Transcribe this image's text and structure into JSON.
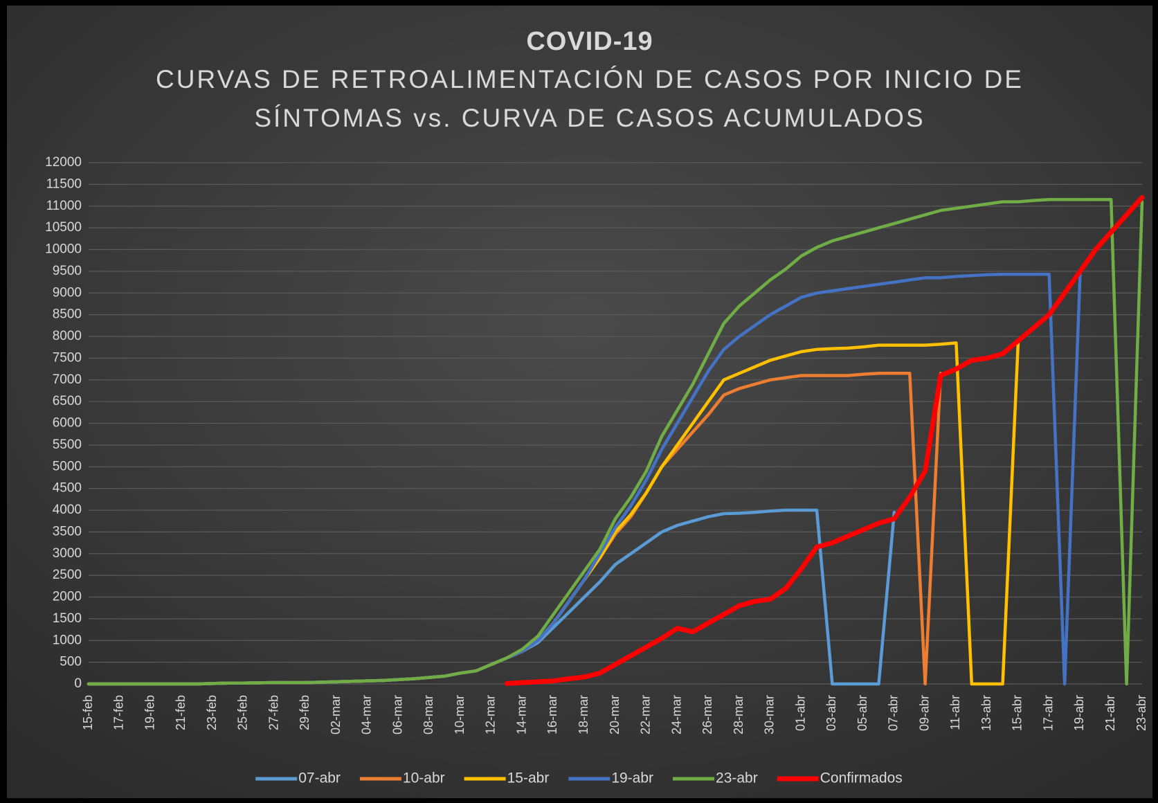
{
  "chart_data": {
    "type": "line",
    "title": "COVID-19",
    "subtitle": [
      "CURVAS DE RETROALIMENTACIÓN DE CASOS POR INICIO DE",
      "SÍNTOMAS vs. CURVA DE CASOS ACUMULADOS"
    ],
    "categories": [
      "15-feb",
      null,
      "17-feb",
      null,
      "19-feb",
      null,
      "21-feb",
      null,
      "23-feb",
      null,
      "25-feb",
      null,
      "27-feb",
      null,
      "29-feb",
      null,
      "02-mar",
      null,
      "04-mar",
      null,
      "06-mar",
      null,
      "08-mar",
      null,
      "10-mar",
      null,
      "12-mar",
      null,
      "14-mar",
      null,
      "16-mar",
      null,
      "18-mar",
      null,
      "20-mar",
      null,
      "22-mar",
      null,
      "24-mar",
      null,
      "26-mar",
      null,
      "28-mar",
      null,
      "30-mar",
      null,
      "01-abr",
      null,
      "03-abr",
      null,
      "05-abr",
      null,
      "07-abr",
      null,
      "09-abr",
      null,
      "11-abr",
      null,
      "13-abr",
      null,
      "15-abr",
      null,
      "17-abr",
      null,
      "19-abr",
      null,
      "21-abr",
      null,
      "23-abr"
    ],
    "series": [
      {
        "name": "07-abr",
        "color": "#5b9bd5",
        "values": [
          0,
          0,
          0,
          0,
          0,
          0,
          0,
          0,
          10,
          20,
          20,
          25,
          30,
          30,
          30,
          40,
          50,
          60,
          70,
          80,
          100,
          120,
          150,
          180,
          250,
          300,
          450,
          600,
          750,
          950,
          1300,
          1650,
          2000,
          2350,
          2750,
          3000,
          3250,
          3500,
          3650,
          3750,
          3850,
          3920,
          3930,
          3950,
          3980,
          4000,
          4000,
          4000,
          0,
          0,
          0,
          0,
          3950,
          null,
          null,
          null,
          null,
          null,
          null,
          null,
          null,
          null,
          null,
          null,
          null,
          null,
          null,
          null,
          null
        ]
      },
      {
        "name": "10-abr",
        "color": "#ed7d31",
        "values": [
          0,
          0,
          0,
          0,
          0,
          0,
          0,
          0,
          10,
          20,
          20,
          25,
          30,
          30,
          30,
          40,
          50,
          60,
          70,
          80,
          100,
          120,
          150,
          180,
          250,
          300,
          450,
          600,
          750,
          1000,
          1400,
          1900,
          2400,
          2900,
          3450,
          3850,
          4400,
          5000,
          5400,
          5800,
          6200,
          6650,
          6800,
          6900,
          7000,
          7050,
          7100,
          7100,
          7100,
          7100,
          7130,
          7150,
          7150,
          7150,
          0,
          7150,
          null,
          null,
          null,
          null,
          null,
          null,
          null,
          null,
          null,
          null,
          null,
          null,
          null
        ]
      },
      {
        "name": "15-abr",
        "color": "#ffc000",
        "values": [
          0,
          0,
          0,
          0,
          0,
          0,
          0,
          0,
          10,
          20,
          20,
          25,
          30,
          30,
          30,
          40,
          50,
          60,
          70,
          80,
          100,
          120,
          150,
          180,
          250,
          300,
          450,
          600,
          750,
          1000,
          1400,
          1900,
          2400,
          2900,
          3500,
          3900,
          4400,
          5000,
          5500,
          6000,
          6500,
          7000,
          7150,
          7300,
          7450,
          7550,
          7650,
          7700,
          7720,
          7730,
          7760,
          7800,
          7800,
          7800,
          7800,
          7820,
          7850,
          0,
          0,
          0,
          7850,
          null,
          null,
          null,
          null,
          null,
          null,
          null,
          null
        ]
      },
      {
        "name": "19-abr",
        "color": "#4472c4",
        "values": [
          0,
          0,
          0,
          0,
          0,
          0,
          0,
          0,
          10,
          20,
          20,
          25,
          30,
          30,
          30,
          40,
          50,
          60,
          70,
          80,
          100,
          120,
          150,
          180,
          250,
          300,
          450,
          600,
          750,
          1000,
          1400,
          1900,
          2400,
          3000,
          3600,
          4100,
          4700,
          5400,
          6000,
          6600,
          7200,
          7700,
          8000,
          8250,
          8500,
          8700,
          8900,
          9000,
          9050,
          9100,
          9150,
          9200,
          9250,
          9300,
          9350,
          9350,
          9380,
          9400,
          9420,
          9430,
          9430,
          9430,
          9430,
          0,
          9450,
          null,
          null,
          null,
          null
        ]
      },
      {
        "name": "23-abr",
        "color": "#70ad47",
        "values": [
          0,
          0,
          0,
          0,
          0,
          0,
          0,
          0,
          10,
          20,
          20,
          25,
          30,
          30,
          30,
          40,
          50,
          60,
          70,
          80,
          100,
          120,
          150,
          180,
          250,
          300,
          450,
          600,
          800,
          1100,
          1600,
          2100,
          2600,
          3100,
          3800,
          4300,
          4900,
          5700,
          6300,
          6900,
          7600,
          8300,
          8700,
          9000,
          9300,
          9550,
          9850,
          10050,
          10200,
          10300,
          10400,
          10500,
          10600,
          10700,
          10800,
          10900,
          10950,
          11000,
          11050,
          11100,
          11100,
          11130,
          11150,
          11150,
          11150,
          11150,
          11150,
          0,
          11100
        ]
      },
      {
        "name": "Confirmados",
        "color": "#ff0000",
        "values": [
          null,
          null,
          null,
          null,
          null,
          null,
          null,
          null,
          null,
          null,
          null,
          null,
          null,
          null,
          null,
          null,
          null,
          null,
          null,
          null,
          null,
          null,
          null,
          null,
          null,
          null,
          null,
          10,
          30,
          50,
          70,
          120,
          160,
          250,
          450,
          650,
          850,
          1050,
          1280,
          1200,
          1400,
          1600,
          1800,
          1900,
          1950,
          2200,
          2650,
          3150,
          3250,
          3400,
          3550,
          3700,
          3800,
          4300,
          4900,
          7100,
          7250,
          7450,
          7500,
          7600,
          7900,
          8200,
          8500,
          9000,
          9500,
          10000,
          10400,
          10800,
          11200
        ]
      }
    ],
    "ylim": [
      0,
      12000
    ],
    "yticks": [
      0,
      500,
      1000,
      1500,
      2000,
      2500,
      3000,
      3500,
      4000,
      4500,
      5000,
      5500,
      6000,
      6500,
      7000,
      7500,
      8000,
      8500,
      9000,
      9500,
      10000,
      10500,
      11000,
      11500,
      12000
    ],
    "grid": true,
    "legend": "bottom"
  }
}
